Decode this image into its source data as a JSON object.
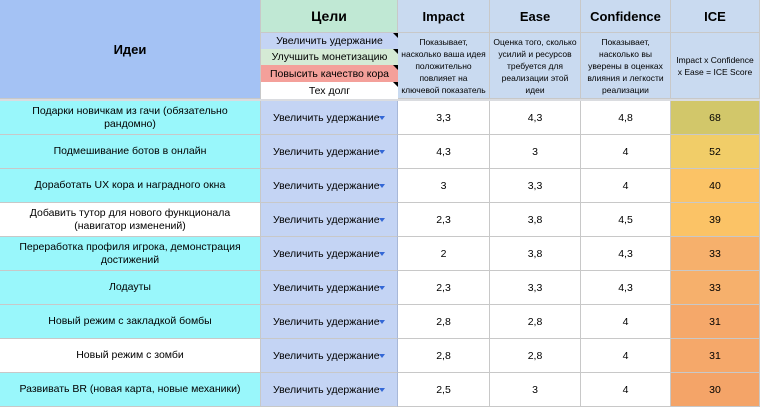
{
  "header": {
    "ideas": "Идеи",
    "goals": "Цели",
    "impact": "Impact",
    "ease": "Ease",
    "confidence": "Confidence",
    "ice": "ICE",
    "impact_desc": "Показывает, насколько ваша идея положительно повлияет на ключевой показатель",
    "ease_desc": "Оценка того, сколько усилий и ресурсов требуется для реализации этой идеи",
    "confidence_desc": "Показывает, насколько вы уверены в оценках влияния и легкости реализации",
    "ice_desc": "Impact x Confidence x Ease = ICE Score"
  },
  "goal_legend": [
    {
      "label": "Увеличить удержание",
      "color": "#c4d4f4"
    },
    {
      "label": "Улучшить монетизацию",
      "color": "#d5ead5"
    },
    {
      "label": "Повысить качество кора",
      "color": "#f4a09a"
    },
    {
      "label": "Тех долг",
      "color": "#ffffff"
    }
  ],
  "rows": [
    {
      "idea": "Подарки новичкам из гачи (обязательно рандомно)",
      "goal": "Увеличить удержание",
      "impact": "3,3",
      "ease": "4,3",
      "confidence": "4,8",
      "ice": "68",
      "idea_color": "#99f7fb",
      "ice_color": "#d2c76a"
    },
    {
      "idea": "Подмешивание ботов в онлайн",
      "goal": "Увеличить удержание",
      "impact": "4,3",
      "ease": "3",
      "confidence": "4",
      "ice": "52",
      "idea_color": "#99f7fb",
      "ice_color": "#f1cd68"
    },
    {
      "idea": "Доработать UX кора и наградного окна",
      "goal": "Увеличить удержание",
      "impact": "3",
      "ease": "3,3",
      "confidence": "4",
      "ice": "40",
      "idea_color": "#99f7fb",
      "ice_color": "#fbc366"
    },
    {
      "idea": "Добавить тутор для нового функционала (навигатор изменений)",
      "goal": "Увеличить удержание",
      "impact": "2,3",
      "ease": "3,8",
      "confidence": "4,5",
      "ice": "39",
      "idea_color": "#ffffff",
      "ice_color": "#fbc366"
    },
    {
      "idea": "Переработка профиля игрока, демонстрация достижений",
      "goal": "Увеличить удержание",
      "impact": "2",
      "ease": "3,8",
      "confidence": "4,3",
      "ice": "33",
      "idea_color": "#99f7fb",
      "ice_color": "#f6b06c"
    },
    {
      "idea": "Лодауты",
      "goal": "Увеличить удержание",
      "impact": "2,3",
      "ease": "3,3",
      "confidence": "4,3",
      "ice": "33",
      "idea_color": "#99f7fb",
      "ice_color": "#f6b06c"
    },
    {
      "idea": "Новый режим с закладкой бомбы",
      "goal": "Увеличить удержание",
      "impact": "2,8",
      "ease": "2,8",
      "confidence": "4",
      "ice": "31",
      "idea_color": "#99f7fb",
      "ice_color": "#f5a86a"
    },
    {
      "idea": "Новый режим с зомби",
      "goal": "Увеличить удержание",
      "impact": "2,8",
      "ease": "2,8",
      "confidence": "4",
      "ice": "31",
      "idea_color": "#ffffff",
      "ice_color": "#f5a86a"
    },
    {
      "idea": "Развивать BR (новая карта, новые механики)",
      "goal": "Увеличить удержание",
      "impact": "2,5",
      "ease": "3",
      "confidence": "4",
      "ice": "30",
      "idea_color": "#99f7fb",
      "ice_color": "#f4a468"
    }
  ]
}
